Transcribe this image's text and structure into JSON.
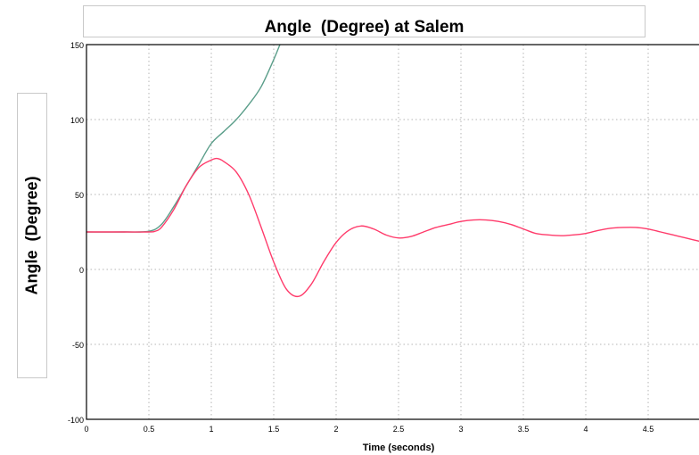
{
  "chart_data": {
    "type": "line",
    "title": "Angle  (Degree) at Salem",
    "xlabel": "Time (seconds)",
    "ylabel": "Angle  (Degree)",
    "xlim": [
      0,
      5
    ],
    "ylim": [
      -100,
      150
    ],
    "x_ticks": [
      "0",
      "0.5",
      "1",
      "1.5",
      "2",
      "2.5",
      "3",
      "3.5",
      "4",
      "4.5"
    ],
    "y_ticks": [
      "150",
      "100",
      "50",
      "0",
      "-50",
      "-100"
    ],
    "grid": true,
    "series": [
      {
        "color": "#5b9e8a",
        "x": [
          0,
          0.3,
          0.5,
          0.6,
          0.7,
          0.8,
          0.9,
          1.0,
          1.1,
          1.2,
          1.3,
          1.4,
          1.5,
          1.55,
          1.58
        ],
        "y": [
          25,
          25,
          25.5,
          30,
          42,
          56,
          70,
          84,
          92,
          100,
          110,
          122,
          140,
          150,
          155
        ]
      },
      {
        "color": "#ff3b6b",
        "x": [
          0,
          0.3,
          0.5,
          0.55,
          0.6,
          0.7,
          0.8,
          0.9,
          1.0,
          1.05,
          1.1,
          1.2,
          1.3,
          1.4,
          1.5,
          1.6,
          1.7,
          1.8,
          1.9,
          2.0,
          2.1,
          2.2,
          2.3,
          2.4,
          2.5,
          2.6,
          2.7,
          2.8,
          2.9,
          3.0,
          3.1,
          3.2,
          3.3,
          3.4,
          3.5,
          3.6,
          3.7,
          3.8,
          3.9,
          4.0,
          4.1,
          4.2,
          4.3,
          4.4,
          4.5,
          4.6,
          4.7,
          4.8,
          4.9,
          5.0
        ],
        "y": [
          25,
          25,
          25,
          25.5,
          28,
          40,
          56,
          68,
          73,
          74,
          72,
          65,
          50,
          28,
          5,
          -13,
          -18,
          -10,
          5,
          18,
          26,
          29,
          27,
          23,
          21,
          22,
          25,
          28,
          30,
          32,
          33,
          33,
          32,
          30,
          27,
          24,
          23,
          22.5,
          23,
          24,
          26,
          27.5,
          28,
          28,
          27,
          25,
          23,
          21,
          19,
          17
        ]
      }
    ]
  }
}
